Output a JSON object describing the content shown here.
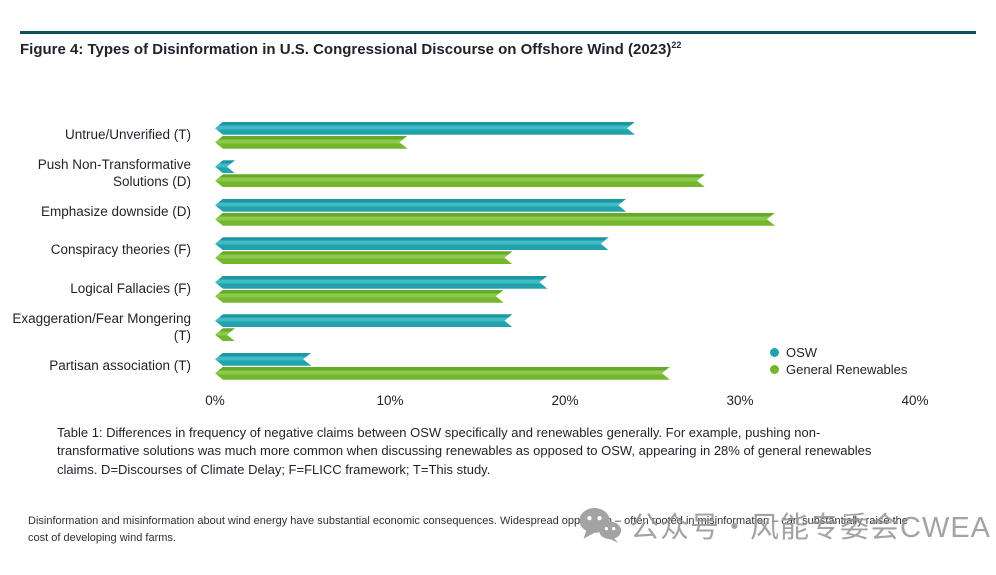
{
  "figure": {
    "title": "Figure 4: Types of Disinformation in U.S. Congressional Discourse on Offshore Wind (2023)",
    "title_superscript": "22"
  },
  "chart_data": {
    "type": "bar",
    "orientation": "horizontal",
    "title": "Figure 4: Types of Disinformation in U.S. Congressional Discourse on Offshore Wind (2023)",
    "categories": [
      "Untrue/Unverified (T)",
      "Push Non-Transformative Solutions (D)",
      "Emphasize downside (D)",
      "Conspiracy theories (F)",
      "Logical Fallacies (F)",
      "Exaggeration/Fear Mongering (T)",
      "Partisan association (T)"
    ],
    "series": [
      {
        "name": "OSW",
        "color": "#23a2ae",
        "values": [
          24,
          1,
          23.5,
          22.5,
          19,
          17,
          5.5
        ]
      },
      {
        "name": "General Renewables",
        "color": "#74b72c",
        "values": [
          11,
          28,
          32,
          17,
          16.5,
          1,
          26
        ]
      }
    ],
    "x_ticks": [
      "0%",
      "10%",
      "20%",
      "30%",
      "40%"
    ],
    "xlim": [
      0,
      40
    ],
    "unit": "percent",
    "grid": false,
    "legend_position": "right-lower"
  },
  "caption": "Table 1: Differences in frequency of negative claims between OSW specifically and renewables generally. For example, pushing non-transformative solutions was much more common when discussing renewables as opposed to OSW, appearing in 28% of general renewables claims. D=Discourses of Climate Delay; F=FLICC framework; T=This study.",
  "footnote": "Disinformation and misinformation about wind energy have substantial economic consequences. Widespread opposition – often rooted in misinformation – can substantially raise the cost of developing wind farms.",
  "watermark": {
    "icon": "wechat-icon",
    "text": "公众号・风能专委会CWEA"
  }
}
